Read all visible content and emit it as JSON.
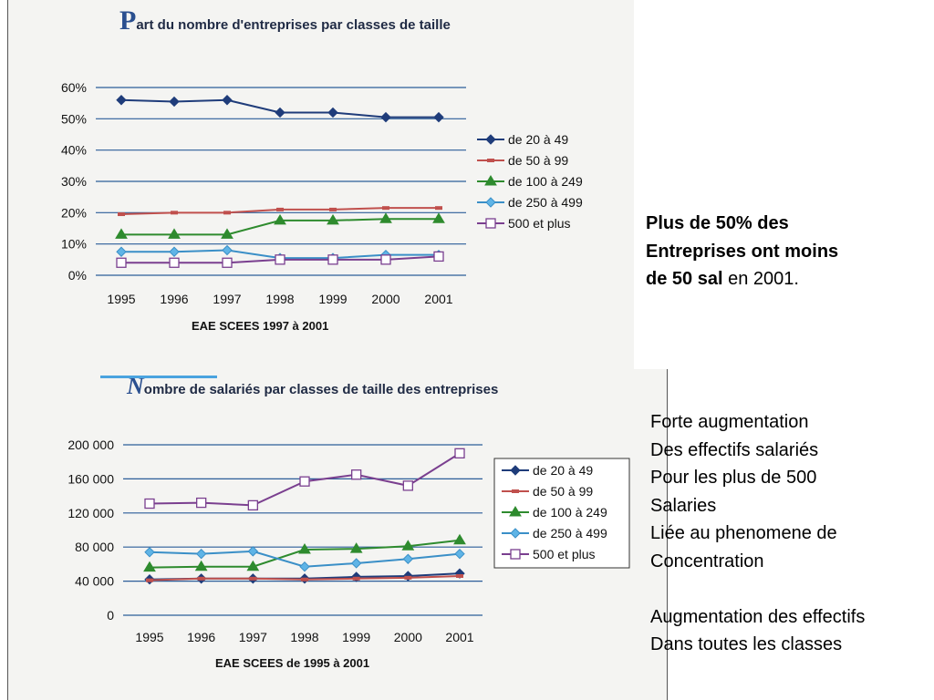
{
  "chart_data": [
    {
      "type": "line",
      "title_cap": "P",
      "title_rest": "art du nombre d'entreprises par classes de taille",
      "source": "EAE SCEES 1997 à 2001",
      "categories": [
        "1995",
        "1996",
        "1997",
        "1998",
        "1999",
        "2000",
        "2001"
      ],
      "yticks": [
        "60%",
        "50%",
        "40%",
        "30%",
        "20%",
        "10%",
        "0%"
      ],
      "ylim": [
        0,
        60
      ],
      "legend_position": "right",
      "series": [
        {
          "name": "de 20 à 49",
          "color": "#1f3c7a",
          "marker": "diamond",
          "values": [
            56,
            55.5,
            56,
            52,
            52,
            50.5,
            50.5
          ]
        },
        {
          "name": "de 50 à 99",
          "color": "#c0504d",
          "marker": "dash",
          "values": [
            19.5,
            20,
            20,
            21,
            21,
            21.5,
            21.5
          ]
        },
        {
          "name": "de 100 à 249",
          "color": "#2e8b2e",
          "marker": "triangle",
          "values": [
            13,
            13,
            13,
            17.5,
            17.5,
            18,
            18
          ]
        },
        {
          "name": "de 250 à 499",
          "color": "#3a8fc7",
          "marker": "diamond-light",
          "values": [
            7.5,
            7.5,
            8,
            5.5,
            5.5,
            6.5,
            6.5
          ]
        },
        {
          "name": "500 et plus",
          "color": "#7a3f8f",
          "marker": "square",
          "values": [
            4,
            4,
            4,
            5,
            5,
            5,
            6
          ]
        }
      ]
    },
    {
      "type": "line",
      "title_cap": "N",
      "title_rest": "ombre de salariés par classes de taille des entreprises",
      "source": "EAE SCEES de 1995 à 2001",
      "categories": [
        "1995",
        "1996",
        "1997",
        "1998",
        "1999",
        "2000",
        "2001"
      ],
      "yticks": [
        "200 000",
        "160 000",
        "120 000",
        "80 000",
        "40 000",
        "0"
      ],
      "ylim": [
        0,
        200000
      ],
      "legend_position": "right",
      "series": [
        {
          "name": "de 20 à 49",
          "color": "#1f3c7a",
          "marker": "diamond",
          "values": [
            42000,
            43000,
            43000,
            43000,
            45000,
            46000,
            49000
          ]
        },
        {
          "name": "de 50 à 99",
          "color": "#c0504d",
          "marker": "dash",
          "values": [
            41000,
            43000,
            43000,
            42000,
            43000,
            44000,
            46000
          ]
        },
        {
          "name": "de 100 à 249",
          "color": "#2e8b2e",
          "marker": "triangle",
          "values": [
            56000,
            57000,
            57000,
            77000,
            78000,
            81000,
            88000
          ]
        },
        {
          "name": "de 250 à 499",
          "color": "#3a8fc7",
          "marker": "diamond-light",
          "values": [
            74000,
            72000,
            75000,
            57000,
            61000,
            66000,
            72000
          ]
        },
        {
          "name": "500 et plus",
          "color": "#7a3f8f",
          "marker": "square",
          "values": [
            131000,
            132000,
            129000,
            157000,
            165000,
            152000,
            190000
          ]
        }
      ]
    }
  ],
  "note1": {
    "bold_lines": [
      "Plus de 50% des",
      "Entreprises ont moins"
    ],
    "last_bold": "de 50 sal",
    "last_normal": " en 2001."
  },
  "note2": {
    "paragraph1": [
      "Forte augmentation",
      "Des effectifs salariés",
      "Pour les plus de 500",
      "Salaries",
      "Liée au phenomene de",
      "Concentration"
    ],
    "paragraph2": [
      "Augmentation des effectifs",
      "Dans toutes les classes"
    ]
  }
}
